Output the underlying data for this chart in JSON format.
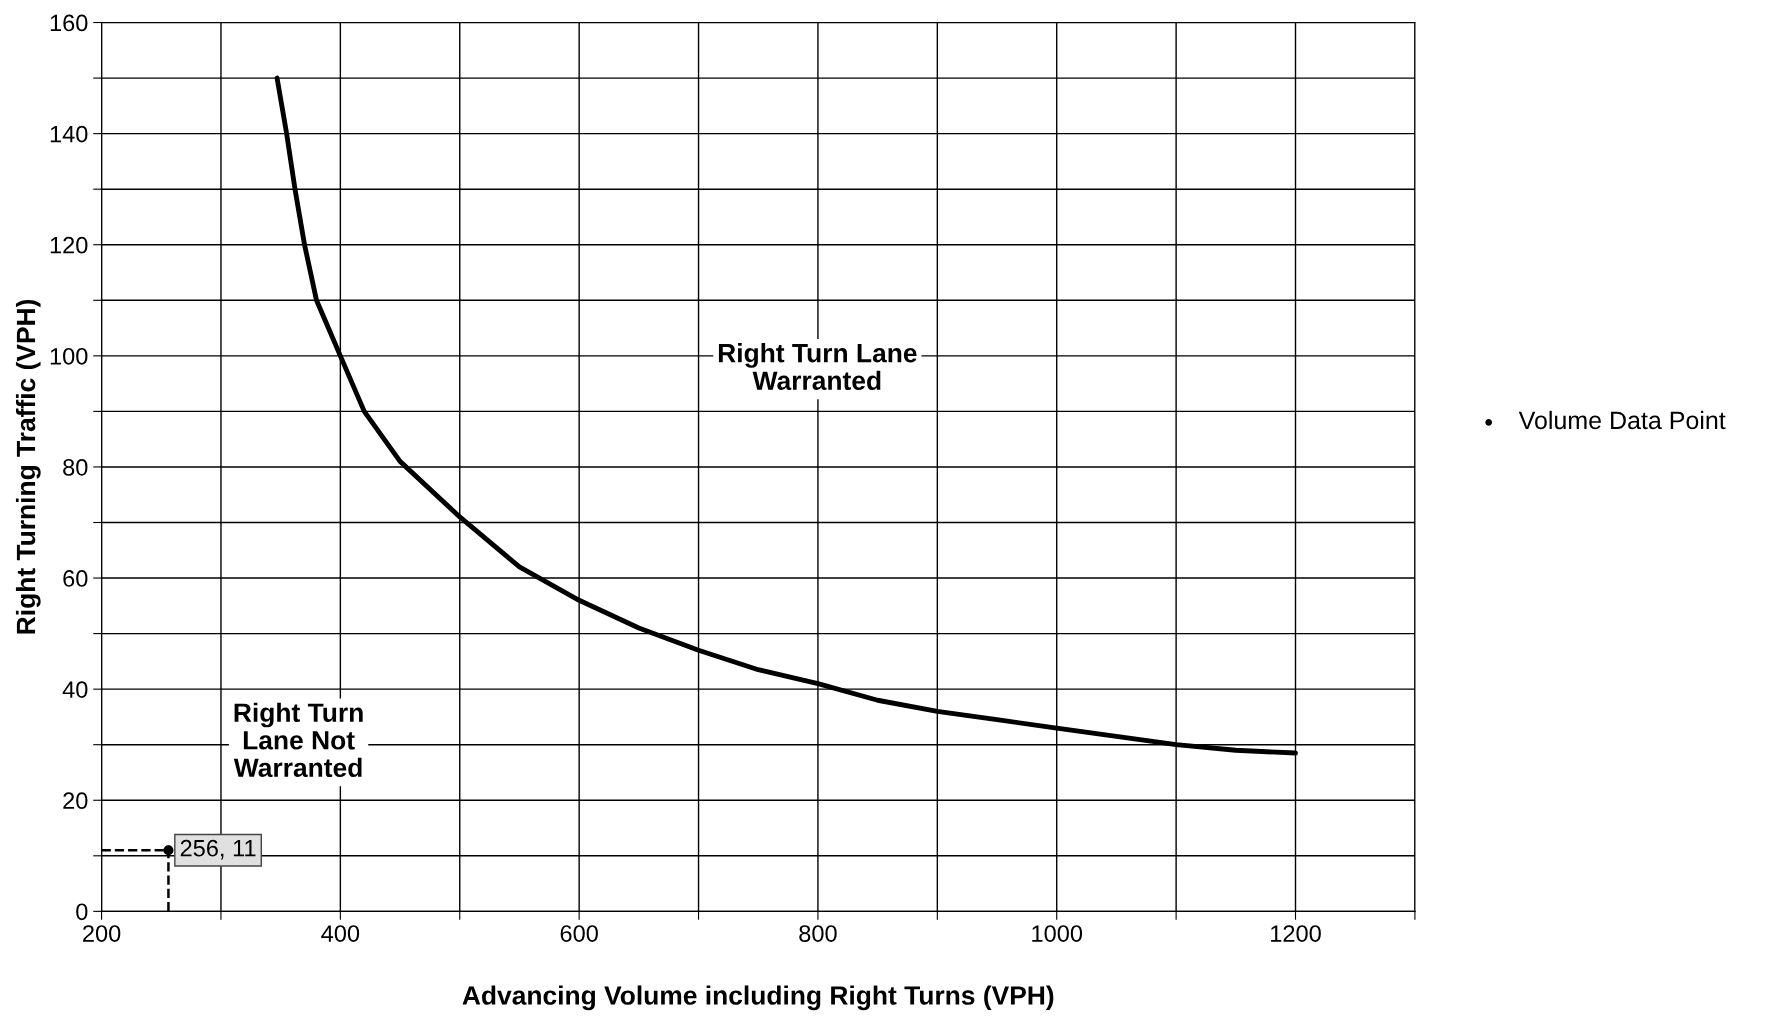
{
  "chart_data": {
    "type": "line",
    "xlabel": "Advancing Volume including Right Turns (VPH)",
    "ylabel": "Right Turning Traffic (VPH)",
    "xlim": [
      200,
      1300
    ],
    "xticks": [
      200,
      {
        "value": 300,
        "label": null
      },
      400,
      {
        "value": 500,
        "label": null
      },
      600,
      {
        "value": 700,
        "label": null
      },
      800,
      {
        "value": 900,
        "label": null
      },
      1000,
      {
        "value": 1100,
        "label": null
      },
      1200,
      {
        "value": 1300,
        "label": null
      }
    ],
    "ylim": [
      0,
      160
    ],
    "yticks": [
      0,
      {
        "value": 10,
        "label": null
      },
      20,
      {
        "value": 30,
        "label": null
      },
      40,
      {
        "value": 50,
        "label": null
      },
      60,
      {
        "value": 70,
        "label": null
      },
      80,
      {
        "value": 90,
        "label": null
      },
      100,
      {
        "value": 110,
        "label": null
      },
      120,
      {
        "value": 130,
        "label": null
      },
      140,
      {
        "value": 150,
        "label": null
      },
      160
    ],
    "grid": true,
    "legend": "right",
    "series": [
      {
        "color": "#000000",
        "line_style": "solid",
        "marker": "none",
        "x": [
          347,
          355,
          362,
          370,
          380,
          390,
          400,
          420,
          450,
          500,
          550,
          600,
          650,
          700,
          750,
          800,
          850,
          900,
          950,
          1000,
          1050,
          1100,
          1150,
          1200
        ],
        "values": [
          150,
          140,
          130,
          120,
          110,
          105,
          100,
          90,
          81,
          71,
          62,
          56,
          51,
          47,
          43.5,
          41,
          38,
          36,
          34.5,
          33,
          31.5,
          30,
          29,
          28.5
        ]
      },
      {
        "type": "scatter",
        "name": "Volume Data Point",
        "color": "#000000",
        "marker": "circle",
        "x": [
          256
        ],
        "values": [
          11
        ],
        "value_labels": [
          "256, 11"
        ]
      }
    ],
    "annotations": [
      "Right Turn Lane\nWarranted",
      "Right Turn\nLane Not\nWarranted"
    ]
  }
}
